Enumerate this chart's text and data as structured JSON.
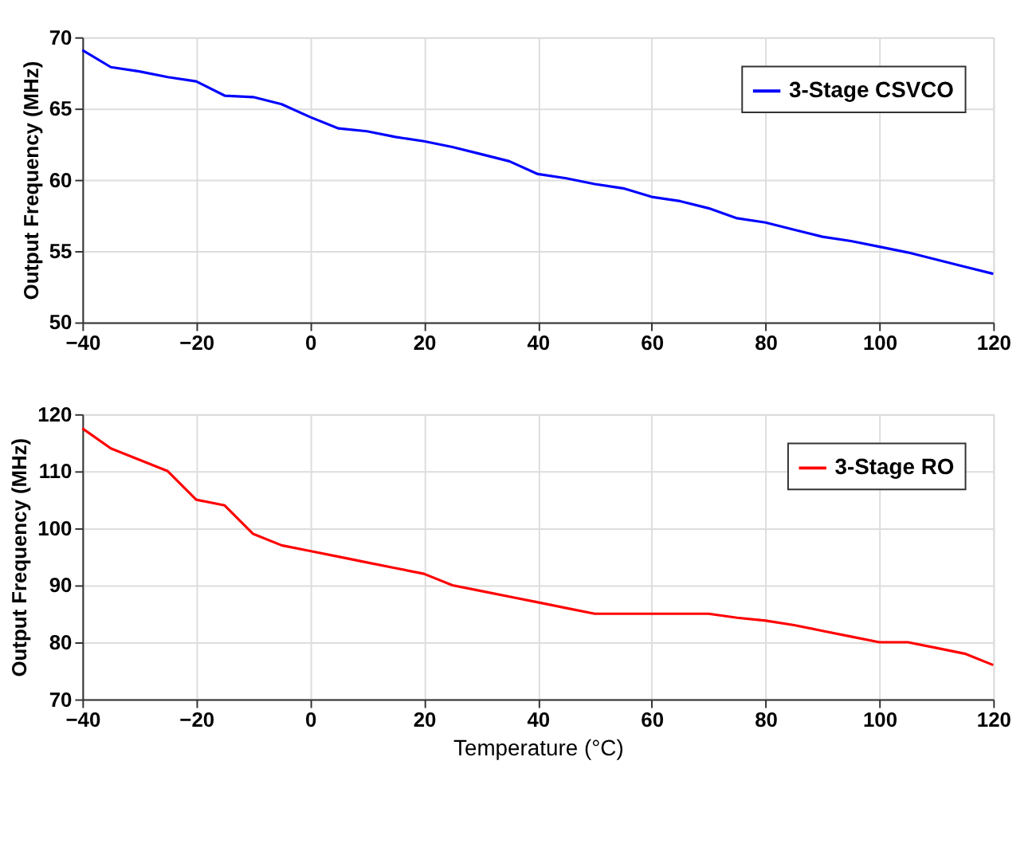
{
  "chart_data": [
    {
      "type": "line",
      "ylabel": "Output Frequency (MHz)",
      "x": [
        -40,
        -35,
        -30,
        -25,
        -20,
        -15,
        -10,
        -5,
        0,
        5,
        10,
        15,
        20,
        25,
        30,
        35,
        40,
        45,
        50,
        55,
        60,
        65,
        70,
        75,
        80,
        85,
        90,
        95,
        100,
        105,
        110,
        115,
        120
      ],
      "series": [
        {
          "name": "3-Stage CSVCO",
          "color": "#0000ff",
          "values": [
            69.1,
            67.9,
            67.6,
            67.2,
            66.9,
            65.9,
            65.8,
            65.3,
            64.4,
            63.6,
            63.4,
            63.0,
            62.7,
            62.3,
            61.8,
            61.3,
            60.4,
            60.1,
            59.7,
            59.4,
            58.8,
            58.5,
            58.0,
            57.3,
            57.0,
            56.5,
            56.0,
            55.7,
            55.3,
            54.9,
            54.4,
            53.9,
            53.4
          ]
        }
      ],
      "xlim": [
        -40,
        120
      ],
      "xticks": [
        -40,
        -20,
        0,
        20,
        40,
        60,
        80,
        100,
        120
      ],
      "ylim": [
        50,
        70
      ],
      "yticks": [
        50,
        55,
        60,
        65,
        70
      ],
      "grid": true,
      "legend": "top right",
      "line_style": "solid"
    },
    {
      "type": "line",
      "ylabel": "Output Frequency (MHz)",
      "xlabel": "Temperature (°C)",
      "x": [
        -40,
        -35,
        -30,
        -25,
        -20,
        -15,
        -10,
        -5,
        0,
        5,
        10,
        15,
        20,
        25,
        30,
        35,
        40,
        45,
        50,
        55,
        60,
        65,
        70,
        75,
        80,
        85,
        90,
        95,
        100,
        105,
        110,
        115,
        120
      ],
      "series": [
        {
          "name": "3-Stage RO",
          "color": "#ff0000",
          "values": [
            117.5,
            114,
            112,
            110,
            105,
            104,
            99,
            97,
            96,
            95,
            94,
            93,
            92,
            90,
            89,
            88,
            87,
            86,
            85,
            85,
            85,
            85,
            85,
            84.3,
            83.8,
            83,
            82,
            81,
            80,
            80,
            79,
            78,
            76
          ]
        }
      ],
      "xlim": [
        -40,
        120
      ],
      "xticks": [
        -40,
        -20,
        0,
        20,
        40,
        60,
        80,
        100,
        120
      ],
      "ylim": [
        70,
        120
      ],
      "yticks": [
        70,
        80,
        90,
        100,
        110,
        120
      ],
      "grid": true,
      "legend": "top right",
      "line_style": "solid"
    }
  ]
}
